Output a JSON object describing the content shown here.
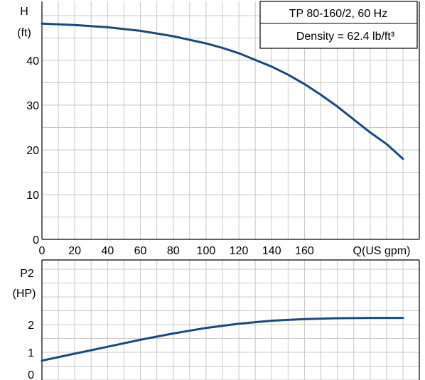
{
  "chart_data": [
    {
      "type": "line",
      "id": "head",
      "title": "",
      "xlabel": "Q(US gpm)",
      "ylabel": [
        "H",
        "(ft)"
      ],
      "xlim": [
        0,
        220
      ],
      "ylim": [
        0,
        50
      ],
      "xticks": [
        0,
        20,
        40,
        60,
        80,
        100,
        120,
        140,
        160
      ],
      "yticks": [
        0,
        10,
        20,
        30,
        40
      ],
      "grid": true,
      "legend": [
        "TP 80-160/2, 60 Hz",
        "Density = 62.4 lb/ft³"
      ],
      "series": [
        {
          "color": "#1a4a7c",
          "x": [
            0,
            20,
            40,
            60,
            80,
            100,
            110,
            120,
            130,
            140,
            150,
            160,
            170,
            180,
            190,
            200,
            210,
            220
          ],
          "y": [
            48.2,
            47.9,
            47.4,
            46.6,
            45.4,
            43.8,
            42.8,
            41.6,
            40.1,
            38.6,
            36.8,
            34.7,
            32.3,
            29.7,
            26.8,
            23.9,
            21.3,
            18.0
          ]
        }
      ]
    },
    {
      "type": "line",
      "id": "power",
      "title": "",
      "xlabel": "",
      "ylabel": [
        "P2",
        "(HP)"
      ],
      "xlim": [
        0,
        220
      ],
      "ylim": [
        0,
        4
      ],
      "yticks": [
        0,
        1,
        2
      ],
      "grid": true,
      "series": [
        {
          "color": "#1a4a7c",
          "x": [
            0,
            20,
            40,
            60,
            80,
            100,
            120,
            140,
            160,
            180,
            200,
            220
          ],
          "y": [
            0.7,
            0.95,
            1.2,
            1.45,
            1.68,
            1.88,
            2.03,
            2.14,
            2.2,
            2.23,
            2.24,
            2.24
          ]
        }
      ]
    }
  ]
}
